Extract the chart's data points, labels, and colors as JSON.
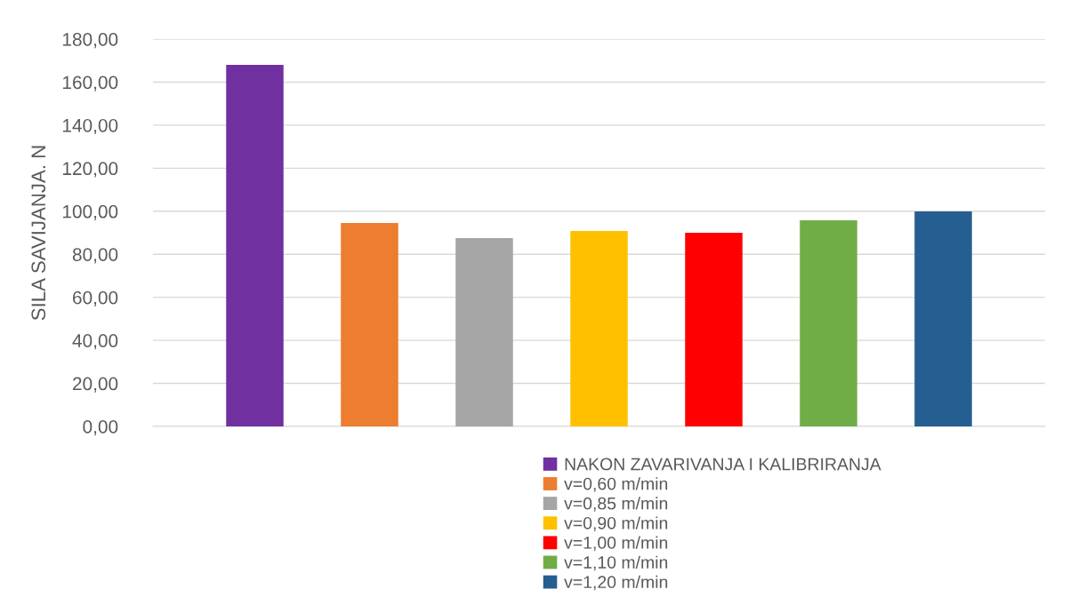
{
  "chart_data": {
    "type": "bar",
    "ylabel": "SILA SAVIJANJA. N",
    "categories": [
      null
    ],
    "series": [
      {
        "name": "NAKON ZAVARIVANJA I KALIBRIRANJA",
        "color": "#7030a0",
        "values": [
          168.0
        ]
      },
      {
        "name": "v=0,60 m/min",
        "color": "#ed7d31",
        "values": [
          94.5
        ]
      },
      {
        "name": "v=0,85 m/min",
        "color": "#a5a5a5",
        "values": [
          87.5
        ]
      },
      {
        "name": "v=0,90 m/min",
        "color": "#ffc000",
        "values": [
          90.8
        ]
      },
      {
        "name": "v=1,00 m/min",
        "color": "#ff0000",
        "values": [
          90.0
        ]
      },
      {
        "name": "v=1,10 m/min",
        "color": "#70ad47",
        "values": [
          95.8
        ]
      },
      {
        "name": "v=1,20 m/min",
        "color": "#255e91",
        "values": [
          99.9
        ]
      }
    ],
    "ylim": [
      0,
      180
    ],
    "yticks": [
      {
        "value": 0,
        "label": "0,00"
      },
      {
        "value": 20,
        "label": "20,00"
      },
      {
        "value": 40,
        "label": "40,00"
      },
      {
        "value": 60,
        "label": "60,00"
      },
      {
        "value": 80,
        "label": "80,00"
      },
      {
        "value": 100,
        "label": "100,00"
      },
      {
        "value": 120,
        "label": "120,00"
      },
      {
        "value": 140,
        "label": "140,00"
      },
      {
        "value": 160,
        "label": "160,00"
      },
      {
        "value": 180,
        "label": "180,00"
      }
    ],
    "grid": "y",
    "legend": "bottom right"
  }
}
